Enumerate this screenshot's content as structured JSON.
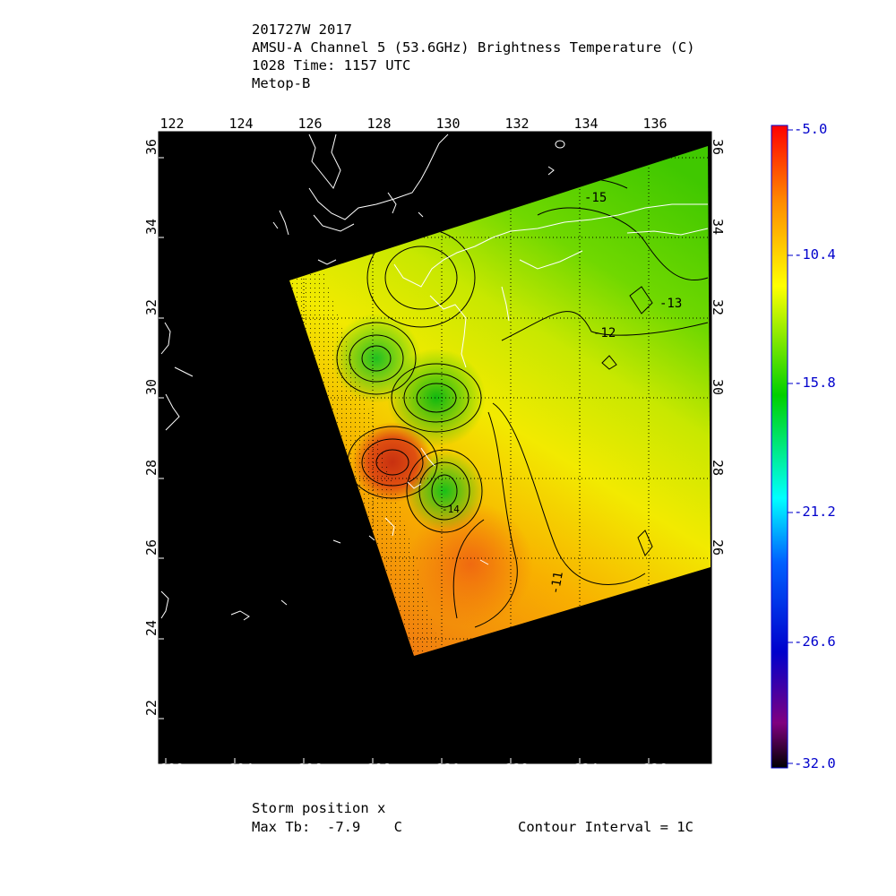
{
  "header": {
    "line1": "201727W 2017",
    "line2": "AMSU-A Channel 5 (53.6GHz) Brightness Temperature (C)",
    "line3": "1028 Time: 1157 UTC",
    "line4": "Metop-B"
  },
  "map": {
    "lon_ticks": [
      "122",
      "124",
      "126",
      "128",
      "130",
      "132",
      "134",
      "136"
    ],
    "lat_ticks": [
      "22",
      "24",
      "26",
      "28",
      "30",
      "32",
      "34",
      "36"
    ],
    "contour_labels": [
      "-15",
      "-13",
      "-12",
      "-11",
      "-14"
    ],
    "lon_range": [
      121.8,
      137.8
    ],
    "lat_range": [
      20.8,
      36.6
    ]
  },
  "colorbar": {
    "labels": [
      "-5.0",
      "-10.4",
      "-15.8",
      "-21.2",
      "-26.6",
      "-32.0"
    ],
    "colors": [
      "#ff0000",
      "#ff8c00",
      "#ffff00",
      "#00d000",
      "#00ffff",
      "#0060ff",
      "#0000cc",
      "#800080",
      "#000000"
    ]
  },
  "footer": {
    "storm_position": "Storm position x",
    "max_tb": "Max Tb:  -7.9    C",
    "contour_interval": "Contour Interval = 1C"
  }
}
